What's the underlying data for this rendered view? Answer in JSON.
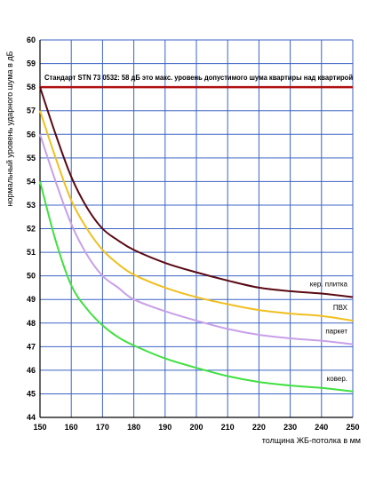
{
  "chart_data": {
    "type": "line",
    "xlabel": "толщина ЖБ-потолка в мм",
    "ylabel": "нормальный уровень ударного шума в дБ",
    "xlim": [
      150,
      250
    ],
    "ylim": [
      44,
      60
    ],
    "xticks": [
      150,
      160,
      170,
      180,
      190,
      200,
      210,
      220,
      230,
      240,
      250
    ],
    "yticks": [
      44,
      45,
      46,
      47,
      48,
      49,
      50,
      51,
      52,
      53,
      54,
      55,
      56,
      57,
      58,
      59,
      60
    ],
    "grid": true,
    "reference_line": {
      "y": 58,
      "color": "#b01010",
      "label": "Стандарт STN 73 0532: 58 дБ это макс. уровень допустимого шума квартиры над квартирой"
    },
    "series": [
      {
        "name": "кер. плитка",
        "color": "#5a0a14",
        "x": [
          150,
          155,
          160,
          165,
          170,
          175,
          180,
          190,
          200,
          210,
          220,
          230,
          240,
          250
        ],
        "y": [
          58.0,
          56.0,
          54.2,
          52.9,
          52.0,
          51.5,
          51.1,
          50.55,
          50.15,
          49.8,
          49.5,
          49.35,
          49.25,
          49.1
        ]
      },
      {
        "name": "ПВХ",
        "color": "#f0c020",
        "x": [
          150,
          155,
          160,
          165,
          170,
          175,
          180,
          190,
          200,
          210,
          220,
          230,
          240,
          250
        ],
        "y": [
          57.0,
          55.0,
          53.2,
          52.0,
          51.1,
          50.5,
          50.05,
          49.5,
          49.1,
          48.8,
          48.55,
          48.4,
          48.3,
          48.1
        ]
      },
      {
        "name": "паркет",
        "color": "#c8a0e8",
        "x": [
          150,
          155,
          160,
          165,
          170,
          175,
          180,
          190,
          200,
          210,
          220,
          230,
          240,
          250
        ],
        "y": [
          56.0,
          54.0,
          52.2,
          50.9,
          50.0,
          49.5,
          49.0,
          48.5,
          48.1,
          47.75,
          47.5,
          47.35,
          47.25,
          47.1
        ]
      },
      {
        "name": "ковер.",
        "color": "#40e040",
        "x": [
          150,
          155,
          160,
          165,
          170,
          175,
          180,
          190,
          200,
          210,
          220,
          230,
          240,
          250
        ],
        "y": [
          54.0,
          51.5,
          49.6,
          48.6,
          47.9,
          47.4,
          47.05,
          46.5,
          46.1,
          45.75,
          45.5,
          45.35,
          45.25,
          45.1
        ]
      }
    ]
  }
}
